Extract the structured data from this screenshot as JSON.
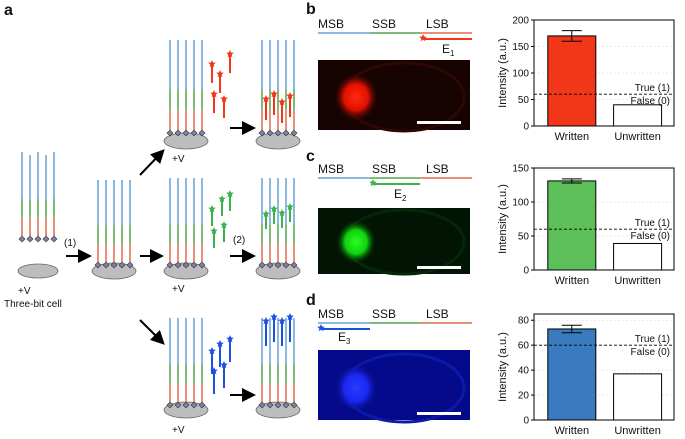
{
  "panels": {
    "a": "a",
    "b": "b",
    "c": "c",
    "d": "d"
  },
  "schematic": {
    "step1": "(1)",
    "step2": "(2)",
    "voltage": "+V",
    "cell_label": "Three-bit cell"
  },
  "segments": {
    "msb": "MSB",
    "ssb": "SSB",
    "lsb": "LSB"
  },
  "colors": {
    "msb": "#8db8e0",
    "ssb": "#7fba7a",
    "lsb": "#e8907a",
    "red": "#f2361a",
    "green": "#3db24a",
    "blue": "#1f4fe0",
    "bar_blue": "#3a7bbf"
  },
  "probes": {
    "b": {
      "label_main": "E",
      "label_sub": "1",
      "color": "#f2361a"
    },
    "c": {
      "label_main": "E",
      "label_sub": "2",
      "color": "#3db24a"
    },
    "d": {
      "label_main": "E",
      "label_sub": "3",
      "color": "#1f4fe0"
    }
  },
  "chart_data": [
    {
      "type": "bar",
      "panel": "b",
      "categories": [
        "Written",
        "Unwritten"
      ],
      "values": [
        170,
        40
      ],
      "error": [
        10,
        0
      ],
      "ylabel": "Intensity (a.u.)",
      "ylim": [
        0,
        200
      ],
      "yticks": [
        0,
        50,
        100,
        150,
        200
      ],
      "threshold": 60,
      "threshold_labels": [
        "True (1)",
        "False (0)"
      ],
      "fill": [
        "#f2361a",
        "#ffffff"
      ],
      "grid": true
    },
    {
      "type": "bar",
      "panel": "c",
      "categories": [
        "Written",
        "Unwritten"
      ],
      "values": [
        131,
        39
      ],
      "error": [
        3,
        0
      ],
      "ylabel": "Intensity (a.u.)",
      "ylim": [
        0,
        150
      ],
      "yticks": [
        0,
        50,
        100,
        150
      ],
      "threshold": 60,
      "threshold_labels": [
        "True (1)",
        "False (0)"
      ],
      "fill": [
        "#5cbf5a",
        "#ffffff"
      ],
      "grid": true
    },
    {
      "type": "bar",
      "panel": "d",
      "categories": [
        "Written",
        "Unwritten"
      ],
      "values": [
        73,
        37
      ],
      "error": [
        3,
        0
      ],
      "ylabel": "Intensity (a.u.)",
      "ylim": [
        0,
        85
      ],
      "yticks": [
        0,
        20,
        40,
        60,
        80
      ],
      "threshold": 60,
      "threshold_labels": [
        "True (1)",
        "False (0)"
      ],
      "fill": [
        "#3a7bbf",
        "#ffffff"
      ],
      "grid": true
    }
  ]
}
